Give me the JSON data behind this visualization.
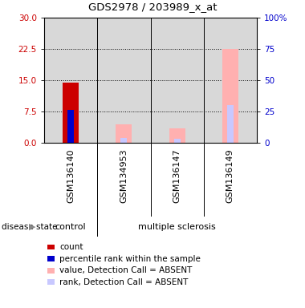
{
  "title": "GDS2978 / 203989_x_at",
  "samples": [
    "GSM136140",
    "GSM134953",
    "GSM136147",
    "GSM136149"
  ],
  "left_yticks": [
    0,
    7.5,
    15,
    22.5,
    30
  ],
  "left_ycolor": "#cc0000",
  "right_yticks": [
    0,
    25,
    50,
    75,
    100
  ],
  "right_ylabels": [
    "0",
    "25",
    "50",
    "75",
    "100%"
  ],
  "right_ycolor": "#0000cc",
  "ylim": [
    0,
    30
  ],
  "right_ylim": [
    0,
    100
  ],
  "count_bar": {
    "sample": "GSM136140",
    "value": 14.5,
    "color": "#cc0000"
  },
  "rank_bar": {
    "sample": "GSM136140",
    "value": 7.8,
    "color": "#0000cc"
  },
  "value_absent": {
    "GSM136140": null,
    "GSM134953": 4.5,
    "GSM136147": 3.5,
    "GSM136149": 22.5
  },
  "rank_absent": {
    "GSM136140": null,
    "GSM134953": 1.2,
    "GSM136147": 1.0,
    "GSM136149": 9.0
  },
  "absent_value_color": "#ffb0b0",
  "absent_rank_color": "#c8c8ff",
  "plot_bg": "#d8d8d8",
  "label_bg": "#d8d8d8",
  "disease_bg": "#55dd55",
  "grid_color": "#000000",
  "control_samples": [
    "GSM136140"
  ],
  "ms_samples": [
    "GSM134953",
    "GSM136147",
    "GSM136149"
  ],
  "legend": [
    {
      "label": "count",
      "color": "#cc0000"
    },
    {
      "label": "percentile rank within the sample",
      "color": "#0000cc"
    },
    {
      "label": "value, Detection Call = ABSENT",
      "color": "#ffb0b0"
    },
    {
      "label": "rank, Detection Call = ABSENT",
      "color": "#c8c8ff"
    }
  ]
}
